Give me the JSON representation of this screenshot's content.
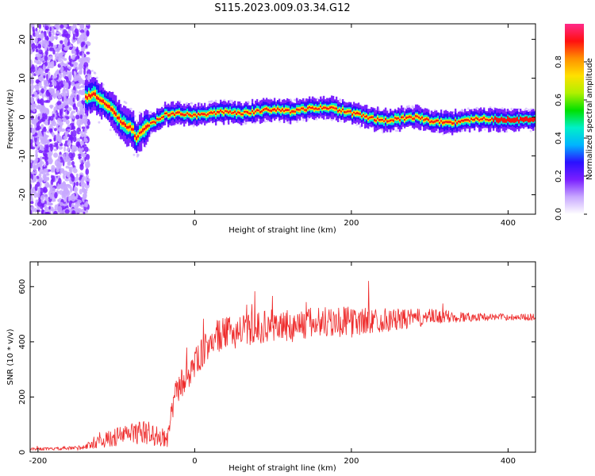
{
  "title": "S115.2023.009.03.34.G12",
  "colors": {
    "background": "#ffffff",
    "snr_line": "#ee2b2b",
    "axis": "#000000"
  },
  "chart_data": [
    {
      "type": "heatmap",
      "xlabel": "Height of straight line (km)",
      "ylabel": "Frequency (Hz)",
      "xlim": [
        -210,
        435
      ],
      "ylim": [
        -25,
        24
      ],
      "xticks": [
        -200,
        0,
        200,
        400
      ],
      "yticks": [
        -20,
        -10,
        0,
        10,
        20
      ],
      "colorbar": {
        "label": "Normalized spectral amplitude",
        "range": [
          0,
          1
        ],
        "ticks": [
          "0.0",
          "0.2",
          "0.4",
          "0.6",
          "0.8"
        ],
        "colormap": [
          "#ffffff",
          "#c8a8ff",
          "#7a1fff",
          "#2b10ff",
          "#00b4ff",
          "#00f0c8",
          "#00e000",
          "#b0f000",
          "#ffe000",
          "#ff9000",
          "#ff1010",
          "#ff2a8a"
        ]
      },
      "ridge": {
        "x": [
          -140,
          -130,
          -120,
          -110,
          -100,
          -90,
          -80,
          -75,
          -70,
          -60,
          -50,
          -40,
          -20,
          0,
          20,
          40,
          60,
          80,
          100,
          120,
          140,
          160,
          180,
          200,
          220,
          240,
          260,
          280,
          300,
          320,
          340,
          360,
          380,
          400,
          435
        ],
        "y": [
          5,
          6,
          4,
          3,
          0,
          -2,
          -3,
          -6,
          -4,
          -2,
          -1,
          0.5,
          1,
          0.5,
          1,
          1.5,
          1,
          1.5,
          2,
          1.5,
          2,
          2.5,
          2,
          1,
          0,
          -1,
          -0.5,
          0,
          -1,
          -1.5,
          -1,
          -0.5,
          -0.5,
          -0.8,
          -0.8
        ]
      },
      "noise_region_x": [
        -210,
        -135
      ]
    },
    {
      "type": "line",
      "xlabel": "Height of straight line (km)",
      "ylabel": "SNR (10 * v/v)",
      "xlim": [
        -210,
        435
      ],
      "ylim": [
        0,
        690
      ],
      "xticks": [
        -200,
        0,
        200,
        400
      ],
      "yticks": [
        0,
        200,
        400,
        600
      ],
      "series": [
        {
          "x": [
            -210,
            -180,
            -150,
            -140,
            -120,
            -100,
            -80,
            -60,
            -50,
            -40,
            -35,
            -30,
            -25,
            -20,
            -10,
            0,
            10,
            20,
            30,
            40,
            60,
            80,
            100,
            120,
            140,
            160,
            180,
            200,
            220,
            240,
            260,
            280,
            300,
            320,
            340,
            360,
            380,
            400,
            420,
            435
          ],
          "y": [
            12,
            12,
            15,
            20,
            40,
            55,
            70,
            70,
            60,
            50,
            40,
            130,
            200,
            240,
            270,
            320,
            360,
            400,
            420,
            430,
            440,
            450,
            460,
            455,
            465,
            470,
            475,
            470,
            475,
            480,
            480,
            485,
            490,
            490,
            490,
            490,
            490,
            490,
            490,
            490
          ],
          "spread": [
            5,
            5,
            8,
            10,
            25,
            35,
            40,
            45,
            40,
            35,
            25,
            40,
            50,
            55,
            55,
            55,
            55,
            60,
            60,
            60,
            60,
            60,
            60,
            60,
            60,
            60,
            60,
            55,
            50,
            45,
            40,
            35,
            30,
            25,
            20,
            15,
            12,
            12,
            12,
            12
          ]
        }
      ]
    }
  ]
}
